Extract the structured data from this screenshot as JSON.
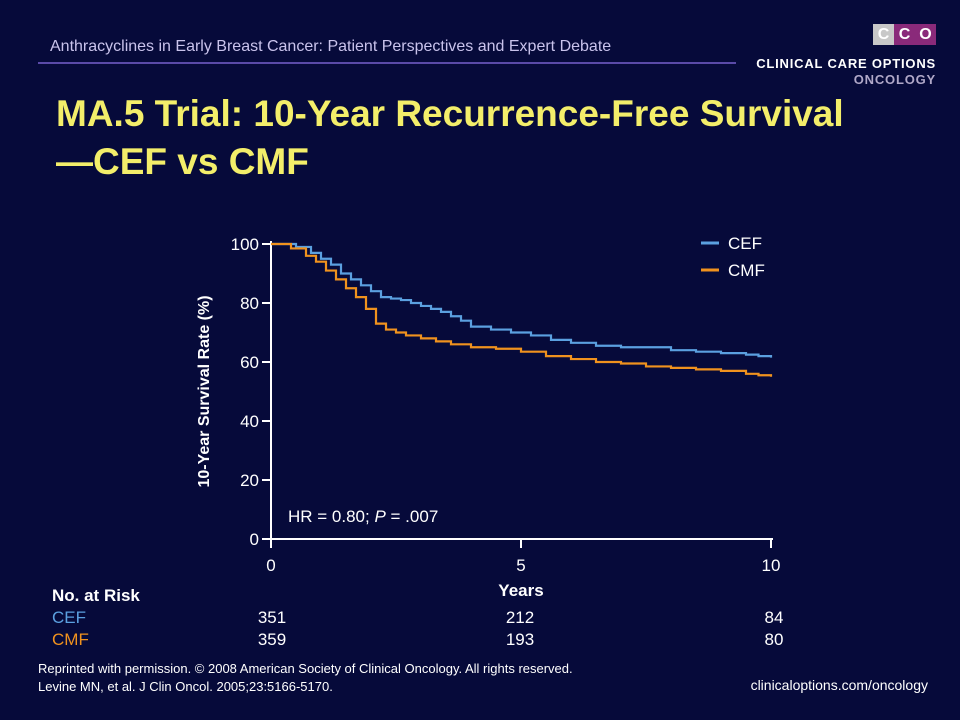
{
  "header": {
    "text": "Anthracyclines in Early Breast Cancer: Patient Perspectives and Expert Debate"
  },
  "logo": {
    "letters": [
      "C",
      "C",
      "O"
    ],
    "line1": "CLINICAL CARE OPTIONS",
    "line2": "ONCOLOGY",
    "colors": [
      "#c8c8c8",
      "#8a2a7a",
      "#8a2a7a"
    ]
  },
  "slide_title": "MA.5 Trial: 10-Year Recurrence-Free Survival—CEF vs CMF",
  "chart_data": {
    "type": "line",
    "title": "",
    "xlabel": "Years",
    "ylabel": "10-Year Survival Rate (%)",
    "xlim": [
      0,
      10
    ],
    "ylim": [
      0,
      100
    ],
    "xticks": [
      0,
      5,
      10
    ],
    "yticks": [
      0,
      20,
      40,
      60,
      80,
      100
    ],
    "grid": false,
    "legend": "top-right",
    "annotation": {
      "prefix": "HR = 0.80; ",
      "p_label": "P",
      "suffix": " = .007"
    },
    "series": [
      {
        "name": "CEF",
        "color": "#5ba0e0",
        "x": [
          0,
          0.5,
          0.8,
          1.0,
          1.2,
          1.4,
          1.6,
          1.8,
          2.0,
          2.2,
          2.4,
          2.6,
          2.8,
          3.0,
          3.2,
          3.4,
          3.6,
          3.8,
          4.0,
          4.4,
          4.8,
          5.2,
          5.6,
          6.0,
          6.5,
          7.0,
          7.5,
          8.0,
          8.5,
          9.0,
          9.5,
          9.75,
          10.0
        ],
        "y": [
          100,
          99,
          97,
          95,
          93,
          90,
          88,
          86,
          84,
          82,
          81.5,
          81,
          80,
          79,
          78,
          77,
          75.5,
          74,
          72,
          71,
          70,
          69,
          67.5,
          66.5,
          65.5,
          65,
          65,
          64,
          63.5,
          63,
          62.5,
          62,
          61.5
        ]
      },
      {
        "name": "CMF",
        "color": "#f0921e",
        "x": [
          0,
          0.4,
          0.7,
          0.9,
          1.1,
          1.3,
          1.5,
          1.7,
          1.9,
          2.1,
          2.3,
          2.5,
          2.7,
          3.0,
          3.3,
          3.6,
          4.0,
          4.5,
          5.0,
          5.5,
          6.0,
          6.5,
          7.0,
          7.5,
          8.0,
          8.5,
          9.0,
          9.5,
          9.75,
          10.0
        ],
        "y": [
          100,
          98.5,
          96,
          94,
          91,
          88,
          85,
          82,
          78,
          73,
          71,
          70,
          69,
          68,
          67,
          66,
          65,
          64.5,
          63.5,
          62,
          61,
          60,
          59.5,
          58.5,
          58,
          57.5,
          57,
          56,
          55.5,
          55
        ]
      }
    ]
  },
  "numbers_at_risk": {
    "title": "No. at Risk",
    "rows": [
      {
        "label": "CEF",
        "values": [
          "351",
          "212",
          "84"
        ]
      },
      {
        "label": "CMF",
        "values": [
          "359",
          "193",
          "80"
        ]
      }
    ]
  },
  "footnote": {
    "line1": "Reprinted with permission. © 2008 American Society of Clinical Oncology. All rights reserved.",
    "line2": "Levine MN, et al. J Clin Oncol. 2005;23:5166-5170."
  },
  "website": "clinicaloptions.com/oncology"
}
